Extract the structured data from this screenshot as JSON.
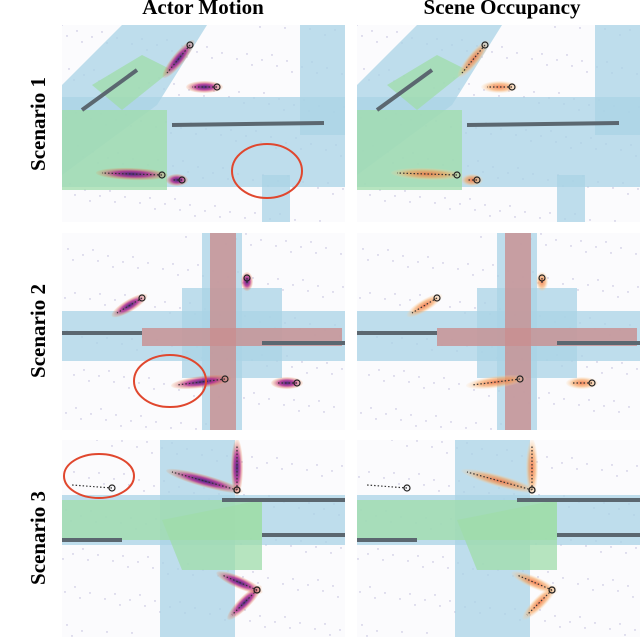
{
  "header": {
    "columns": [
      "Actor Motion",
      "Scene Occupancy"
    ]
  },
  "rows": [
    {
      "label": "Scenario 1"
    },
    {
      "label": "Scenario 2"
    },
    {
      "label": "Scenario 3"
    }
  ]
}
